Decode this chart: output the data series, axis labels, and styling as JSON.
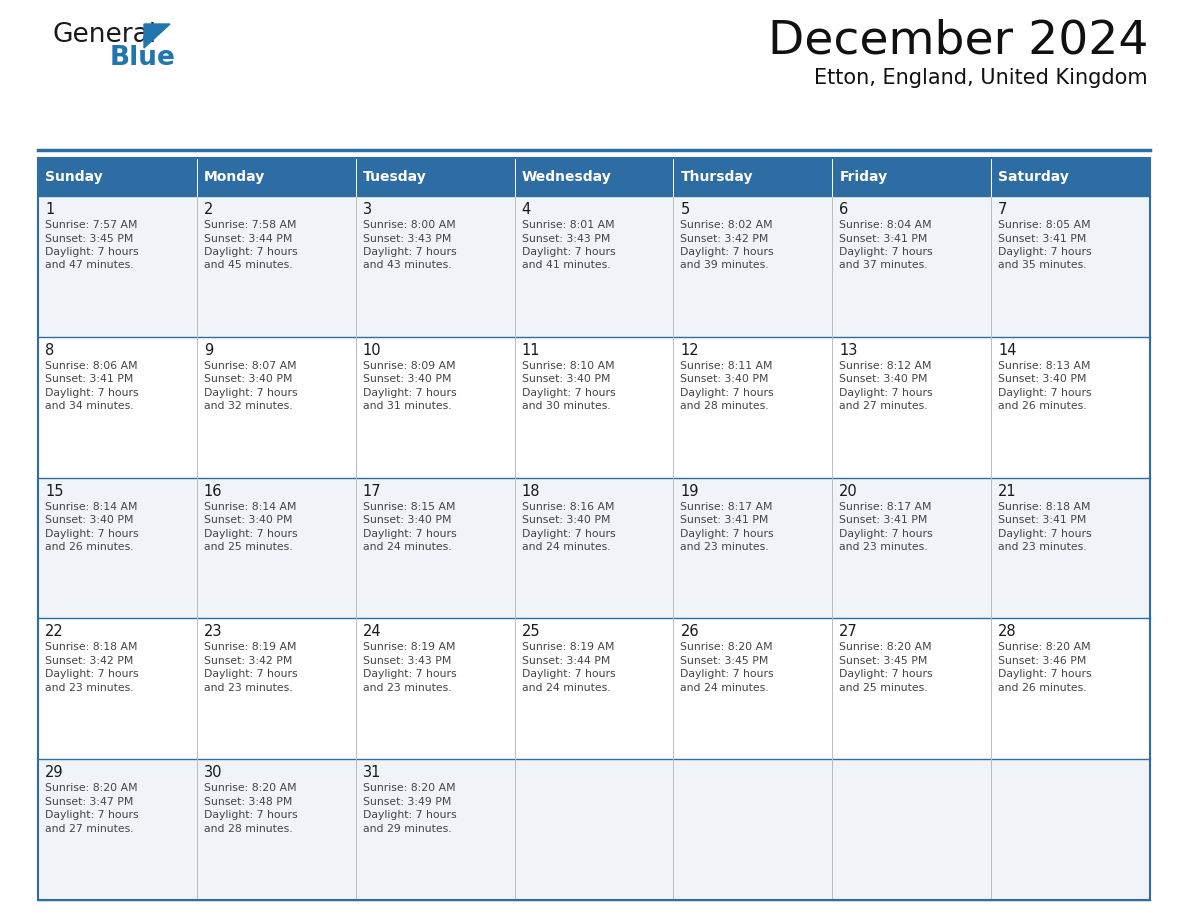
{
  "title": "December 2024",
  "subtitle": "Etton, England, United Kingdom",
  "header_color": "#2E6DA4",
  "header_text_color": "#FFFFFF",
  "cell_bg_even": "#F0F4F8",
  "cell_bg_odd": "#FFFFFF",
  "border_color": "#2E6DA4",
  "day_headers": [
    "Sunday",
    "Monday",
    "Tuesday",
    "Wednesday",
    "Thursday",
    "Friday",
    "Saturday"
  ],
  "days": [
    {
      "day": 1,
      "col": 0,
      "row": 0,
      "sunrise": "7:57 AM",
      "sunset": "3:45 PM",
      "daylight_suffix": "47 minutes."
    },
    {
      "day": 2,
      "col": 1,
      "row": 0,
      "sunrise": "7:58 AM",
      "sunset": "3:44 PM",
      "daylight_suffix": "45 minutes."
    },
    {
      "day": 3,
      "col": 2,
      "row": 0,
      "sunrise": "8:00 AM",
      "sunset": "3:43 PM",
      "daylight_suffix": "43 minutes."
    },
    {
      "day": 4,
      "col": 3,
      "row": 0,
      "sunrise": "8:01 AM",
      "sunset": "3:43 PM",
      "daylight_suffix": "41 minutes."
    },
    {
      "day": 5,
      "col": 4,
      "row": 0,
      "sunrise": "8:02 AM",
      "sunset": "3:42 PM",
      "daylight_suffix": "39 minutes."
    },
    {
      "day": 6,
      "col": 5,
      "row": 0,
      "sunrise": "8:04 AM",
      "sunset": "3:41 PM",
      "daylight_suffix": "37 minutes."
    },
    {
      "day": 7,
      "col": 6,
      "row": 0,
      "sunrise": "8:05 AM",
      "sunset": "3:41 PM",
      "daylight_suffix": "35 minutes."
    },
    {
      "day": 8,
      "col": 0,
      "row": 1,
      "sunrise": "8:06 AM",
      "sunset": "3:41 PM",
      "daylight_suffix": "34 minutes."
    },
    {
      "day": 9,
      "col": 1,
      "row": 1,
      "sunrise": "8:07 AM",
      "sunset": "3:40 PM",
      "daylight_suffix": "32 minutes."
    },
    {
      "day": 10,
      "col": 2,
      "row": 1,
      "sunrise": "8:09 AM",
      "sunset": "3:40 PM",
      "daylight_suffix": "31 minutes."
    },
    {
      "day": 11,
      "col": 3,
      "row": 1,
      "sunrise": "8:10 AM",
      "sunset": "3:40 PM",
      "daylight_suffix": "30 minutes."
    },
    {
      "day": 12,
      "col": 4,
      "row": 1,
      "sunrise": "8:11 AM",
      "sunset": "3:40 PM",
      "daylight_suffix": "28 minutes."
    },
    {
      "day": 13,
      "col": 5,
      "row": 1,
      "sunrise": "8:12 AM",
      "sunset": "3:40 PM",
      "daylight_suffix": "27 minutes."
    },
    {
      "day": 14,
      "col": 6,
      "row": 1,
      "sunrise": "8:13 AM",
      "sunset": "3:40 PM",
      "daylight_suffix": "26 minutes."
    },
    {
      "day": 15,
      "col": 0,
      "row": 2,
      "sunrise": "8:14 AM",
      "sunset": "3:40 PM",
      "daylight_suffix": "26 minutes."
    },
    {
      "day": 16,
      "col": 1,
      "row": 2,
      "sunrise": "8:14 AM",
      "sunset": "3:40 PM",
      "daylight_suffix": "25 minutes."
    },
    {
      "day": 17,
      "col": 2,
      "row": 2,
      "sunrise": "8:15 AM",
      "sunset": "3:40 PM",
      "daylight_suffix": "24 minutes."
    },
    {
      "day": 18,
      "col": 3,
      "row": 2,
      "sunrise": "8:16 AM",
      "sunset": "3:40 PM",
      "daylight_suffix": "24 minutes."
    },
    {
      "day": 19,
      "col": 4,
      "row": 2,
      "sunrise": "8:17 AM",
      "sunset": "3:41 PM",
      "daylight_suffix": "23 minutes."
    },
    {
      "day": 20,
      "col": 5,
      "row": 2,
      "sunrise": "8:17 AM",
      "sunset": "3:41 PM",
      "daylight_suffix": "23 minutes."
    },
    {
      "day": 21,
      "col": 6,
      "row": 2,
      "sunrise": "8:18 AM",
      "sunset": "3:41 PM",
      "daylight_suffix": "23 minutes."
    },
    {
      "day": 22,
      "col": 0,
      "row": 3,
      "sunrise": "8:18 AM",
      "sunset": "3:42 PM",
      "daylight_suffix": "23 minutes."
    },
    {
      "day": 23,
      "col": 1,
      "row": 3,
      "sunrise": "8:19 AM",
      "sunset": "3:42 PM",
      "daylight_suffix": "23 minutes."
    },
    {
      "day": 24,
      "col": 2,
      "row": 3,
      "sunrise": "8:19 AM",
      "sunset": "3:43 PM",
      "daylight_suffix": "23 minutes."
    },
    {
      "day": 25,
      "col": 3,
      "row": 3,
      "sunrise": "8:19 AM",
      "sunset": "3:44 PM",
      "daylight_suffix": "24 minutes."
    },
    {
      "day": 26,
      "col": 4,
      "row": 3,
      "sunrise": "8:20 AM",
      "sunset": "3:45 PM",
      "daylight_suffix": "24 minutes."
    },
    {
      "day": 27,
      "col": 5,
      "row": 3,
      "sunrise": "8:20 AM",
      "sunset": "3:45 PM",
      "daylight_suffix": "25 minutes."
    },
    {
      "day": 28,
      "col": 6,
      "row": 3,
      "sunrise": "8:20 AM",
      "sunset": "3:46 PM",
      "daylight_suffix": "26 minutes."
    },
    {
      "day": 29,
      "col": 0,
      "row": 4,
      "sunrise": "8:20 AM",
      "sunset": "3:47 PM",
      "daylight_suffix": "27 minutes."
    },
    {
      "day": 30,
      "col": 1,
      "row": 4,
      "sunrise": "8:20 AM",
      "sunset": "3:48 PM",
      "daylight_suffix": "28 minutes."
    },
    {
      "day": 31,
      "col": 2,
      "row": 4,
      "sunrise": "8:20 AM",
      "sunset": "3:49 PM",
      "daylight_suffix": "29 minutes."
    }
  ],
  "logo_color1": "#1a1a1a",
  "logo_color2": "#2176AE",
  "logo_triangle_color": "#2176AE",
  "fig_width": 11.88,
  "fig_height": 9.18,
  "dpi": 100
}
